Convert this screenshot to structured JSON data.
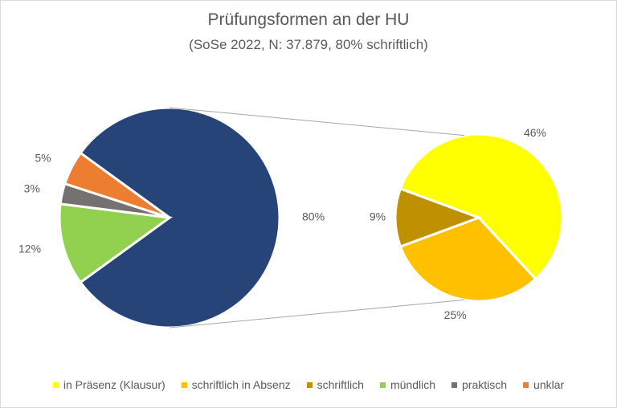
{
  "chart_data": {
    "type": "pie",
    "title": "Prüfungsformen an der HU",
    "subtitle": "(SoSe 2022, N: 37.879, 80% schriftlich)",
    "main_pie": {
      "slices": [
        {
          "name": "schriftlich",
          "value": 80,
          "label": "80%",
          "color": "#264478"
        },
        {
          "name": "mündlich",
          "value": 12,
          "label": "12%",
          "color": "#92D050"
        },
        {
          "name": "praktisch",
          "value": 3,
          "label": "3%",
          "color": "#767171"
        },
        {
          "name": "unklar",
          "value": 5,
          "label": "5%",
          "color": "#ED7D31"
        }
      ]
    },
    "secondary_pie": {
      "breakdown_of": "schriftlich",
      "slices": [
        {
          "name": "in Präsenz (Klausur)",
          "value": 46,
          "label": "46%",
          "color": "#FFFF00"
        },
        {
          "name": "schriftlich in Absenz",
          "value": 25,
          "label": "25%",
          "color": "#FFC000"
        },
        {
          "name": "schriftlich",
          "value": 9,
          "label": "9%",
          "color": "#BF9000"
        }
      ]
    },
    "legend": {
      "placement": "bottom",
      "entries": [
        {
          "label": "in Präsenz (Klausur)",
          "color": "#FFFF00"
        },
        {
          "label": "schriftlich in Absenz",
          "color": "#FFC000"
        },
        {
          "label": "schriftlich",
          "color": "#BF9000"
        },
        {
          "label": "mündlich",
          "color": "#92D050"
        },
        {
          "label": "praktisch",
          "color": "#767171"
        },
        {
          "label": "unklar",
          "color": "#ED7D31"
        }
      ]
    }
  }
}
